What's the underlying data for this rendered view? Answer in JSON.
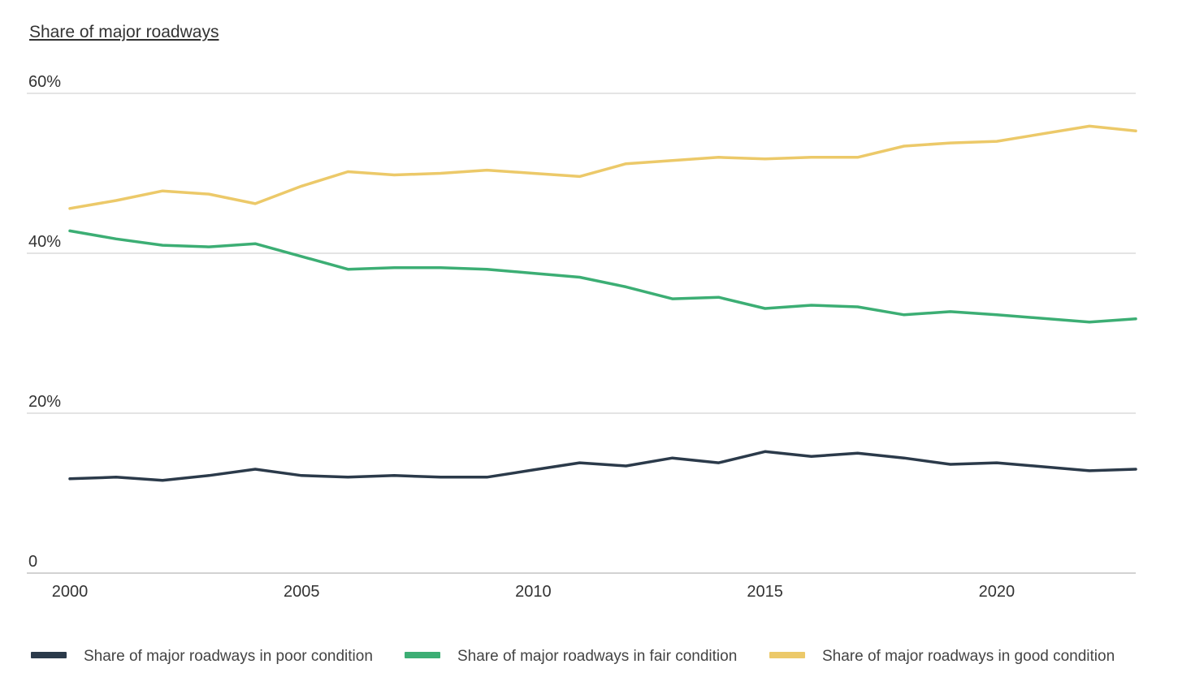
{
  "chart_data": {
    "type": "line",
    "ylabel": "Share of major roadways",
    "xlabel": "",
    "ylim": [
      0,
      60
    ],
    "xlim": [
      2000,
      2023
    ],
    "y_ticks": [
      {
        "value": 0,
        "label": "0"
      },
      {
        "value": 20,
        "label": "20%"
      },
      {
        "value": 40,
        "label": "40%"
      },
      {
        "value": 60,
        "label": "60%"
      }
    ],
    "x_ticks": [
      {
        "value": 2000,
        "label": "2000"
      },
      {
        "value": 2005,
        "label": "2005"
      },
      {
        "value": 2010,
        "label": "2010"
      },
      {
        "value": 2015,
        "label": "2015"
      },
      {
        "value": 2020,
        "label": "2020"
      }
    ],
    "grid": true,
    "legend_position": "bottom",
    "x": [
      2000,
      2001,
      2002,
      2003,
      2004,
      2005,
      2006,
      2007,
      2008,
      2009,
      2010,
      2011,
      2012,
      2013,
      2014,
      2015,
      2016,
      2017,
      2018,
      2019,
      2020,
      2022,
      2023
    ],
    "series": [
      {
        "name": "Share of major roadways in poor condition",
        "color": "#2b3a4a",
        "values": [
          11.8,
          12.0,
          11.6,
          12.2,
          13.0,
          12.2,
          12.0,
          12.2,
          12.0,
          12.0,
          12.9,
          13.8,
          13.4,
          14.4,
          13.8,
          15.2,
          14.6,
          15.0,
          14.4,
          13.6,
          13.8,
          12.8,
          13.0
        ]
      },
      {
        "name": "Share of major roadways in fair condition",
        "color": "#3cae74",
        "values": [
          42.8,
          41.8,
          41.0,
          40.8,
          41.2,
          39.6,
          38.0,
          38.2,
          38.2,
          38.0,
          37.5,
          37.0,
          35.8,
          34.3,
          34.5,
          33.1,
          33.5,
          33.3,
          32.3,
          32.7,
          32.3,
          31.4,
          31.8
        ]
      },
      {
        "name": "Share of major roadways in good condition",
        "color": "#ecc969",
        "values": [
          45.6,
          46.6,
          47.8,
          47.4,
          46.2,
          48.4,
          50.2,
          49.8,
          50.0,
          50.4,
          50.0,
          49.6,
          51.2,
          51.6,
          52.0,
          51.8,
          52.0,
          52.0,
          53.4,
          53.8,
          54.0,
          55.9,
          55.3
        ]
      }
    ]
  }
}
